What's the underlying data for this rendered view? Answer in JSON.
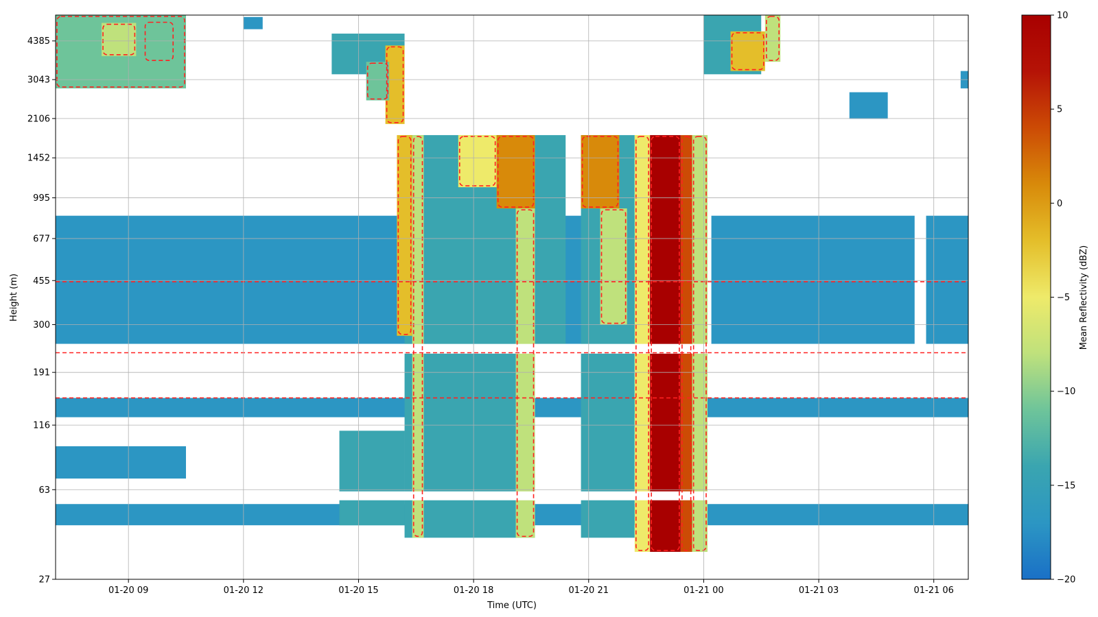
{
  "chart_data": {
    "type": "heatmap",
    "title": "",
    "xlabel": "Time (UTC)",
    "ylabel": "Height (m)",
    "x_ticks": [
      {
        "label": "01-20 09",
        "hours": 9
      },
      {
        "label": "01-20 12",
        "hours": 12
      },
      {
        "label": "01-20 15",
        "hours": 15
      },
      {
        "label": "01-20 18",
        "hours": 18
      },
      {
        "label": "01-20 21",
        "hours": 21
      },
      {
        "label": "01-21 00",
        "hours": 24
      },
      {
        "label": "01-21 03",
        "hours": 27
      },
      {
        "label": "01-21 06",
        "hours": 30
      }
    ],
    "xlim_hours": [
      7.1,
      30.9
    ],
    "y_scale": "log",
    "y_ticks": [
      27,
      63,
      116,
      191,
      300,
      455,
      677,
      995,
      1452,
      2106,
      3043,
      4385
    ],
    "ylim": [
      27,
      5600
    ],
    "grid": true,
    "colorbar": {
      "label": "Mean Reflectivity (dBZ)",
      "range": [
        -20,
        10
      ],
      "ticks": [
        -20,
        -15,
        -10,
        -5,
        0,
        5,
        10
      ],
      "colormap": [
        "#1a70c6",
        "#2c96c3",
        "#3aa5b0",
        "#6ec49a",
        "#bfe17c",
        "#eeea6a",
        "#e4be2a",
        "#d88a0a",
        "#cc4b05",
        "#b51306",
        "#a80000"
      ]
    },
    "contour": {
      "color": "#ff2020",
      "style": "dashed"
    },
    "regions": [
      {
        "t0": 7.1,
        "t1": 10.5,
        "h0": 2800,
        "h1": 5600,
        "dbz": -11
      },
      {
        "t0": 8.3,
        "t1": 9.2,
        "h0": 3800,
        "h1": 5200,
        "dbz": -7
      },
      {
        "t0": 9.4,
        "t1": 10.2,
        "h0": 3600,
        "h1": 5300,
        "dbz": -10
      },
      {
        "t0": 12.0,
        "t1": 12.5,
        "h0": 4900,
        "h1": 5500,
        "dbz": -16
      },
      {
        "t0": 14.3,
        "t1": 16.2,
        "h0": 3200,
        "h1": 4700,
        "dbz": -14
      },
      {
        "t0": 15.7,
        "t1": 16.2,
        "h0": 2000,
        "h1": 4200,
        "dbz": -2
      },
      {
        "t0": 15.2,
        "t1": 15.8,
        "h0": 2500,
        "h1": 3600,
        "dbz": -12
      },
      {
        "t0": 7.1,
        "t1": 23.8,
        "h0": 250,
        "h1": 840,
        "dbz": -16
      },
      {
        "t0": 24.2,
        "t1": 29.5,
        "h0": 250,
        "h1": 840,
        "dbz": -16
      },
      {
        "t0": 29.8,
        "t1": 30.9,
        "h0": 250,
        "h1": 840,
        "dbz": -16
      },
      {
        "t0": 7.1,
        "t1": 30.9,
        "h0": 125,
        "h1": 150,
        "dbz": -16
      },
      {
        "t0": 7.1,
        "t1": 10.5,
        "h0": 70,
        "h1": 95,
        "dbz": -16
      },
      {
        "t0": 7.1,
        "t1": 30.9,
        "h0": 45,
        "h1": 55,
        "dbz": -16
      },
      {
        "t0": 14.5,
        "t1": 16.2,
        "h0": 45,
        "h1": 110,
        "dbz": -13
      },
      {
        "t0": 16.2,
        "t1": 19.6,
        "h0": 40,
        "h1": 1800,
        "dbz": -15
      },
      {
        "t0": 16.4,
        "t1": 16.7,
        "h0": 40,
        "h1": 1800,
        "dbz": -7
      },
      {
        "t0": 16.0,
        "t1": 16.4,
        "h0": 270,
        "h1": 1800,
        "dbz": -3
      },
      {
        "t0": 17.6,
        "t1": 18.6,
        "h0": 1100,
        "h1": 1800,
        "dbz": -5
      },
      {
        "t0": 18.6,
        "t1": 19.6,
        "h0": 900,
        "h1": 1800,
        "dbz": 0
      },
      {
        "t0": 19.1,
        "t1": 19.6,
        "h0": 40,
        "h1": 900,
        "dbz": -9
      },
      {
        "t0": 19.6,
        "t1": 20.4,
        "h0": 250,
        "h1": 1800,
        "dbz": -15
      },
      {
        "t0": 20.8,
        "t1": 22.2,
        "h0": 40,
        "h1": 1800,
        "dbz": -15
      },
      {
        "t0": 20.8,
        "t1": 21.8,
        "h0": 900,
        "h1": 1800,
        "dbz": 2
      },
      {
        "t0": 21.3,
        "t1": 22.0,
        "h0": 300,
        "h1": 900,
        "dbz": -8
      },
      {
        "t0": 22.2,
        "t1": 22.6,
        "h0": 35,
        "h1": 1800,
        "dbz": -4
      },
      {
        "t0": 22.6,
        "t1": 23.4,
        "h0": 35,
        "h1": 1800,
        "dbz": 9
      },
      {
        "t0": 23.4,
        "t1": 23.7,
        "h0": 35,
        "h1": 1800,
        "dbz": 3
      },
      {
        "t0": 23.7,
        "t1": 24.1,
        "h0": 35,
        "h1": 1800,
        "dbz": -8
      },
      {
        "t0": 24.0,
        "t1": 25.5,
        "h0": 3200,
        "h1": 5600,
        "dbz": -13
      },
      {
        "t0": 24.7,
        "t1": 25.6,
        "h0": 3300,
        "h1": 4800,
        "dbz": -3
      },
      {
        "t0": 25.6,
        "t1": 26.0,
        "h0": 3600,
        "h1": 5600,
        "dbz": -9
      },
      {
        "t0": 27.8,
        "t1": 28.8,
        "h0": 2100,
        "h1": 2700,
        "dbz": -18
      },
      {
        "t0": 30.7,
        "t1": 30.9,
        "h0": 2800,
        "h1": 3300,
        "dbz": -16
      }
    ],
    "gaps": [
      {
        "t0": 7.1,
        "t1": 30.9,
        "h0": 228,
        "h1": 250
      },
      {
        "t0": 7.1,
        "t1": 30.9,
        "h0": 57,
        "h1": 62
      }
    ]
  }
}
